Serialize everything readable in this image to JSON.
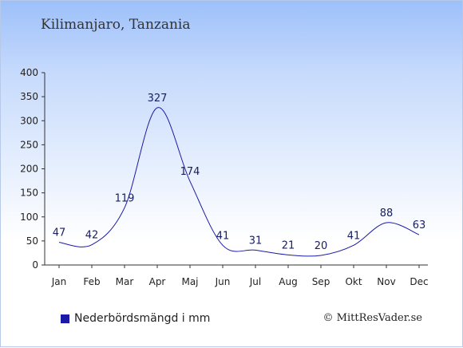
{
  "chart_data": {
    "type": "line",
    "title": "Kilimanjaro, Tanzania",
    "categories": [
      "Jan",
      "Feb",
      "Mar",
      "Apr",
      "Maj",
      "Jun",
      "Jul",
      "Aug",
      "Sep",
      "Okt",
      "Nov",
      "Dec"
    ],
    "series": [
      {
        "name": "Nederbördsmängd i mm",
        "values": [
          47,
          42,
          119,
          327,
          174,
          41,
          31,
          21,
          20,
          41,
          88,
          63
        ]
      }
    ],
    "yticks": [
      "0",
      "50",
      "100",
      "150",
      "200",
      "250",
      "300",
      "350",
      "400"
    ],
    "ylim": [
      0,
      400
    ],
    "grid": false,
    "legend_position": "bottom-left",
    "line_color": "#1a1aa6"
  },
  "credit": "© MittResVader.se"
}
